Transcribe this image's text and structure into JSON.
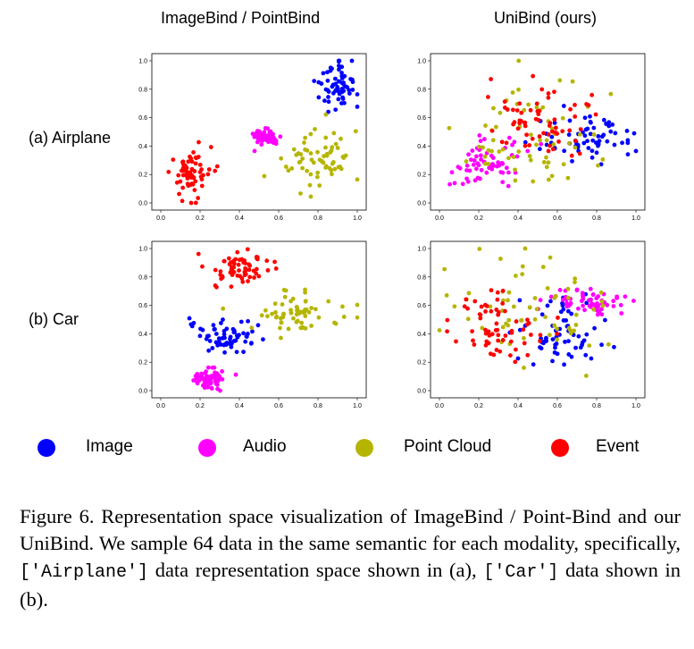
{
  "column_titles": [
    "ImageBind / PointBind",
    "UniBind (ours)"
  ],
  "row_labels": [
    "(a) Airplane",
    "(b) Car"
  ],
  "legend": [
    {
      "label": "Image",
      "color": "#0000ff"
    },
    {
      "label": "Audio",
      "color": "#ff00ff"
    },
    {
      "label": "Point Cloud",
      "color": "#b5b500"
    },
    {
      "label": "Event",
      "color": "#ff0000"
    }
  ],
  "caption": {
    "prefix": "Figure 6. Representation space visualization of ImageBind / Point-Bind and our UniBind. We sample 64 data in the same semantic for each modality, specifically,",
    "code1": "['Airplane']",
    "middle": "data representation space shown in (a),",
    "code2": "['Car']",
    "suffix": "data shown in (b)."
  },
  "chart_data": [
    {
      "type": "scatter",
      "panel": "(a) Airplane — ImageBind / PointBind",
      "xlim": [
        0,
        1
      ],
      "ylim": [
        0,
        1
      ],
      "xticks": [
        "0.0",
        "0.2",
        "0.4",
        "0.6",
        "0.8",
        "1.0"
      ],
      "yticks": [
        "0.0",
        "0.2",
        "0.4",
        "0.6",
        "0.8",
        "1.0"
      ],
      "clusters": [
        {
          "series": "Image",
          "cx": 0.89,
          "cy": 0.82,
          "sx": 0.05,
          "sy": 0.09,
          "n": 64
        },
        {
          "series": "Audio",
          "cx": 0.53,
          "cy": 0.47,
          "sx": 0.035,
          "sy": 0.03,
          "n": 64
        },
        {
          "series": "Point Cloud",
          "cx": 0.8,
          "cy": 0.3,
          "sx": 0.1,
          "sy": 0.11,
          "n": 64
        },
        {
          "series": "Event",
          "cx": 0.15,
          "cy": 0.2,
          "sx": 0.05,
          "sy": 0.09,
          "n": 64
        }
      ]
    },
    {
      "type": "scatter",
      "panel": "(a) Airplane — UniBind (ours)",
      "xlim": [
        0,
        1
      ],
      "ylim": [
        0,
        1
      ],
      "xticks": [
        "0.0",
        "0.2",
        "0.4",
        "0.6",
        "0.8",
        "1.0"
      ],
      "yticks": [
        "0.0",
        "0.2",
        "0.4",
        "0.6",
        "0.8",
        "1.0"
      ],
      "clusters": [
        {
          "series": "Image",
          "cx": 0.78,
          "cy": 0.45,
          "sx": 0.14,
          "sy": 0.1,
          "n": 64
        },
        {
          "series": "Audio",
          "cx": 0.25,
          "cy": 0.3,
          "sx": 0.09,
          "sy": 0.08,
          "n": 64
        },
        {
          "series": "Point Cloud",
          "cx": 0.45,
          "cy": 0.5,
          "sx": 0.2,
          "sy": 0.2,
          "n": 64
        },
        {
          "series": "Event",
          "cx": 0.5,
          "cy": 0.6,
          "sx": 0.12,
          "sy": 0.14,
          "n": 64
        }
      ]
    },
    {
      "type": "scatter",
      "panel": "(b) Car — ImageBind / PointBind",
      "xlim": [
        0,
        1
      ],
      "ylim": [
        0,
        1
      ],
      "xticks": [
        "0.0",
        "0.2",
        "0.4",
        "0.6",
        "0.8",
        "1.0"
      ],
      "yticks": [
        "0.0",
        "0.2",
        "0.4",
        "0.6",
        "0.8",
        "1.0"
      ],
      "clusters": [
        {
          "series": "Image",
          "cx": 0.33,
          "cy": 0.38,
          "sx": 0.09,
          "sy": 0.06,
          "n": 64
        },
        {
          "series": "Audio",
          "cx": 0.25,
          "cy": 0.08,
          "sx": 0.04,
          "sy": 0.035,
          "n": 64
        },
        {
          "series": "Point Cloud",
          "cx": 0.68,
          "cy": 0.55,
          "sx": 0.13,
          "sy": 0.06,
          "n": 64
        },
        {
          "series": "Event",
          "cx": 0.4,
          "cy": 0.85,
          "sx": 0.08,
          "sy": 0.07,
          "n": 64
        }
      ]
    },
    {
      "type": "scatter",
      "panel": "(b) Car — UniBind (ours)",
      "xlim": [
        0,
        1
      ],
      "ylim": [
        0,
        1
      ],
      "xticks": [
        "0.0",
        "0.2",
        "0.4",
        "0.6",
        "0.8",
        "1.0"
      ],
      "yticks": [
        "0.0",
        "0.2",
        "0.4",
        "0.6",
        "0.8",
        "1.0"
      ],
      "clusters": [
        {
          "series": "Image",
          "cx": 0.6,
          "cy": 0.4,
          "sx": 0.12,
          "sy": 0.14,
          "n": 64
        },
        {
          "series": "Audio",
          "cx": 0.75,
          "cy": 0.62,
          "sx": 0.1,
          "sy": 0.04,
          "n": 64
        },
        {
          "series": "Point Cloud",
          "cx": 0.45,
          "cy": 0.55,
          "sx": 0.22,
          "sy": 0.2,
          "n": 64
        },
        {
          "series": "Event",
          "cx": 0.3,
          "cy": 0.42,
          "sx": 0.12,
          "sy": 0.12,
          "n": 64
        }
      ]
    }
  ]
}
